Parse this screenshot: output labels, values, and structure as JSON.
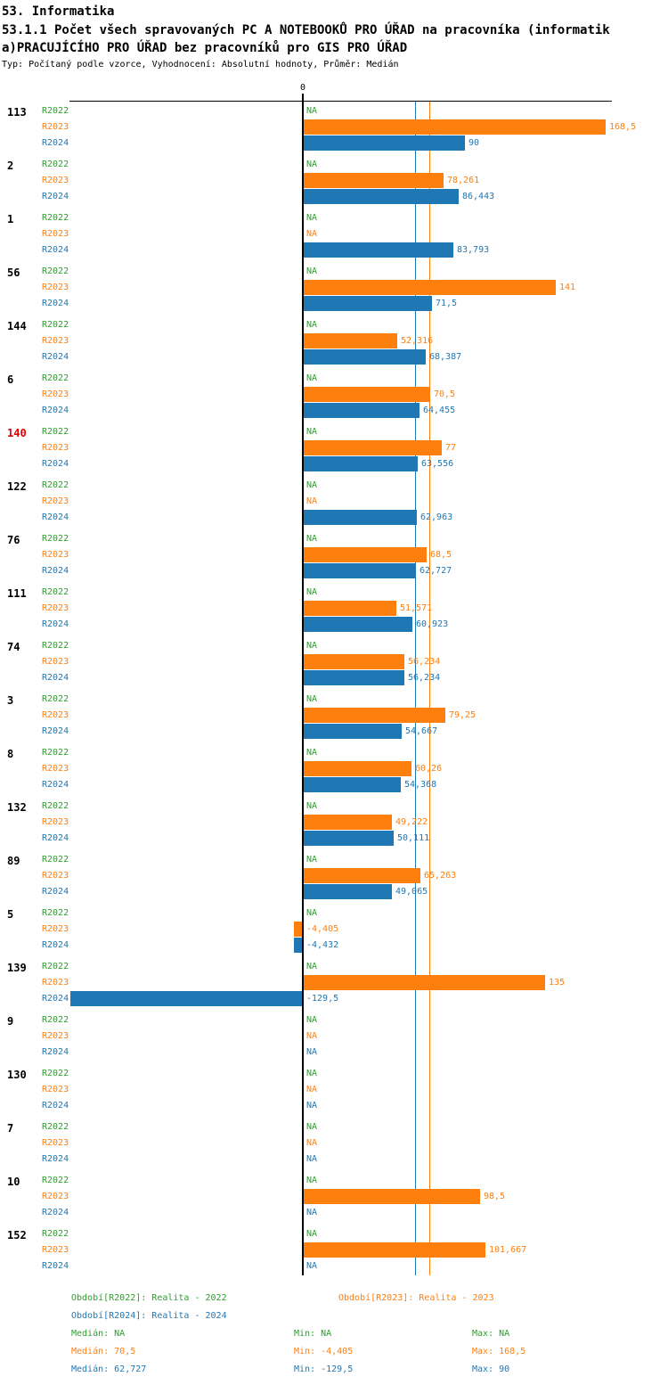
{
  "header": {
    "section": "53. Informatika",
    "title_line1": "53.1.1 Počet všech spravovaných PC A NOTEBOOKŮ PRO ÚŘAD na pracovníka (informatik",
    "title_line2": "a)PRACUJÍCÍHO PRO ÚŘAD bez pracovníků pro GIS PRO ÚŘAD",
    "subtitle": "Typ: Počítaný podle vzorce, Vyhodnocení: Absolutní hodnoty, Průměr: Medián"
  },
  "chart_data": {
    "type": "bar",
    "orientation": "horizontal",
    "title": "53.1.1 Počet všech spravovaných PC A NOTEBOOKŮ PRO ÚŘAD na pracovníka (informatika) PRACUJÍCÍHO PRO ÚŘAD bez pracovníků pro GIS PRO ÚŘAD",
    "zero_label": "0",
    "xlim": [
      -130.5,
      172.5
    ],
    "grid": false,
    "series_colors": {
      "R2022": "#2ca02c",
      "R2023": "#ff7f0e",
      "R2024": "#1f77b4"
    },
    "highlight_color": "#e00000",
    "medians": {
      "R2023": 70.5,
      "R2024": 62.727
    },
    "groups": [
      {
        "id": "113",
        "highlight": false,
        "rows": [
          {
            "period": "R2022",
            "label": "NA",
            "value": null
          },
          {
            "period": "R2023",
            "label": "168,5",
            "value": 168.5
          },
          {
            "period": "R2024",
            "label": "90",
            "value": 90
          }
        ]
      },
      {
        "id": "2",
        "highlight": false,
        "rows": [
          {
            "period": "R2022",
            "label": "NA",
            "value": null
          },
          {
            "period": "R2023",
            "label": "78,261",
            "value": 78.261
          },
          {
            "period": "R2024",
            "label": "86,443",
            "value": 86.443
          }
        ]
      },
      {
        "id": "1",
        "highlight": false,
        "rows": [
          {
            "period": "R2022",
            "label": "NA",
            "value": null
          },
          {
            "period": "R2023",
            "label": "NA",
            "value": null
          },
          {
            "period": "R2024",
            "label": "83,793",
            "value": 83.793
          }
        ]
      },
      {
        "id": "56",
        "highlight": false,
        "rows": [
          {
            "period": "R2022",
            "label": "NA",
            "value": null
          },
          {
            "period": "R2023",
            "label": "141",
            "value": 141
          },
          {
            "period": "R2024",
            "label": "71,5",
            "value": 71.5
          }
        ]
      },
      {
        "id": "144",
        "highlight": false,
        "rows": [
          {
            "period": "R2022",
            "label": "NA",
            "value": null
          },
          {
            "period": "R2023",
            "label": "52,316",
            "value": 52.316
          },
          {
            "period": "R2024",
            "label": "68,387",
            "value": 68.387
          }
        ]
      },
      {
        "id": "6",
        "highlight": false,
        "rows": [
          {
            "period": "R2022",
            "label": "NA",
            "value": null
          },
          {
            "period": "R2023",
            "label": "70,5",
            "value": 70.5
          },
          {
            "period": "R2024",
            "label": "64,455",
            "value": 64.455
          }
        ]
      },
      {
        "id": "140",
        "highlight": true,
        "rows": [
          {
            "period": "R2022",
            "label": "NA",
            "value": null
          },
          {
            "period": "R2023",
            "label": "77",
            "value": 77
          },
          {
            "period": "R2024",
            "label": "63,556",
            "value": 63.556
          }
        ]
      },
      {
        "id": "122",
        "highlight": false,
        "rows": [
          {
            "period": "R2022",
            "label": "NA",
            "value": null
          },
          {
            "period": "R2023",
            "label": "NA",
            "value": null
          },
          {
            "period": "R2024",
            "label": "62,963",
            "value": 62.963
          }
        ]
      },
      {
        "id": "76",
        "highlight": false,
        "rows": [
          {
            "period": "R2022",
            "label": "NA",
            "value": null
          },
          {
            "period": "R2023",
            "label": "68,5",
            "value": 68.5
          },
          {
            "period": "R2024",
            "label": "62,727",
            "value": 62.727
          }
        ]
      },
      {
        "id": "111",
        "highlight": false,
        "rows": [
          {
            "period": "R2022",
            "label": "NA",
            "value": null
          },
          {
            "period": "R2023",
            "label": "51,571",
            "value": 51.571
          },
          {
            "period": "R2024",
            "label": "60,923",
            "value": 60.923
          }
        ]
      },
      {
        "id": "74",
        "highlight": false,
        "rows": [
          {
            "period": "R2022",
            "label": "NA",
            "value": null
          },
          {
            "period": "R2023",
            "label": "56,234",
            "value": 56.234
          },
          {
            "period": "R2024",
            "label": "56,234",
            "value": 56.234
          }
        ]
      },
      {
        "id": "3",
        "highlight": false,
        "rows": [
          {
            "period": "R2022",
            "label": "NA",
            "value": null
          },
          {
            "period": "R2023",
            "label": "79,25",
            "value": 79.25
          },
          {
            "period": "R2024",
            "label": "54,667",
            "value": 54.667
          }
        ]
      },
      {
        "id": "8",
        "highlight": false,
        "rows": [
          {
            "period": "R2022",
            "label": "NA",
            "value": null
          },
          {
            "period": "R2023",
            "label": "60,26",
            "value": 60.26
          },
          {
            "period": "R2024",
            "label": "54,368",
            "value": 54.368
          }
        ]
      },
      {
        "id": "132",
        "highlight": false,
        "rows": [
          {
            "period": "R2022",
            "label": "NA",
            "value": null
          },
          {
            "period": "R2023",
            "label": "49,222",
            "value": 49.222
          },
          {
            "period": "R2024",
            "label": "50,111",
            "value": 50.111
          }
        ]
      },
      {
        "id": "89",
        "highlight": false,
        "rows": [
          {
            "period": "R2022",
            "label": "NA",
            "value": null
          },
          {
            "period": "R2023",
            "label": "65,263",
            "value": 65.263
          },
          {
            "period": "R2024",
            "label": "49,065",
            "value": 49.065
          }
        ]
      },
      {
        "id": "5",
        "highlight": false,
        "rows": [
          {
            "period": "R2022",
            "label": "NA",
            "value": null
          },
          {
            "period": "R2023",
            "label": "-4,405",
            "value": -4.405
          },
          {
            "period": "R2024",
            "label": "-4,432",
            "value": -4.432
          }
        ]
      },
      {
        "id": "139",
        "highlight": false,
        "rows": [
          {
            "period": "R2022",
            "label": "NA",
            "value": null
          },
          {
            "period": "R2023",
            "label": "135",
            "value": 135
          },
          {
            "period": "R2024",
            "label": "-129,5",
            "value": -129.5
          }
        ]
      },
      {
        "id": "9",
        "highlight": false,
        "rows": [
          {
            "period": "R2022",
            "label": "NA",
            "value": null
          },
          {
            "period": "R2023",
            "label": "NA",
            "value": null
          },
          {
            "period": "R2024",
            "label": "NA",
            "value": null
          }
        ]
      },
      {
        "id": "130",
        "highlight": false,
        "rows": [
          {
            "period": "R2022",
            "label": "NA",
            "value": null
          },
          {
            "period": "R2023",
            "label": "NA",
            "value": null
          },
          {
            "period": "R2024",
            "label": "NA",
            "value": null
          }
        ]
      },
      {
        "id": "7",
        "highlight": false,
        "rows": [
          {
            "period": "R2022",
            "label": "NA",
            "value": null
          },
          {
            "period": "R2023",
            "label": "NA",
            "value": null
          },
          {
            "period": "R2024",
            "label": "NA",
            "value": null
          }
        ]
      },
      {
        "id": "10",
        "highlight": false,
        "rows": [
          {
            "period": "R2022",
            "label": "NA",
            "value": null
          },
          {
            "period": "R2023",
            "label": "98,5",
            "value": 98.5
          },
          {
            "period": "R2024",
            "label": "NA",
            "value": null
          }
        ]
      },
      {
        "id": "152",
        "highlight": false,
        "rows": [
          {
            "period": "R2022",
            "label": "NA",
            "value": null
          },
          {
            "period": "R2023",
            "label": "101,667",
            "value": 101.667
          },
          {
            "period": "R2024",
            "label": "NA",
            "value": null
          }
        ]
      }
    ]
  },
  "legend": {
    "r2022": "Období[R2022]: Realita - 2022",
    "r2023": "Období[R2023]: Realita - 2023",
    "r2024": "Období[R2024]: Realita - 2024"
  },
  "stats": {
    "r2022": {
      "median": "Medián: NA",
      "min": "Min: NA",
      "max": "Max: NA"
    },
    "r2023": {
      "median": "Medián: 70,5",
      "min": "Min: -4,405",
      "max": "Max: 168,5"
    },
    "r2024": {
      "median": "Medián: 62,727",
      "min": "Min: -129,5",
      "max": "Max: 90"
    }
  }
}
